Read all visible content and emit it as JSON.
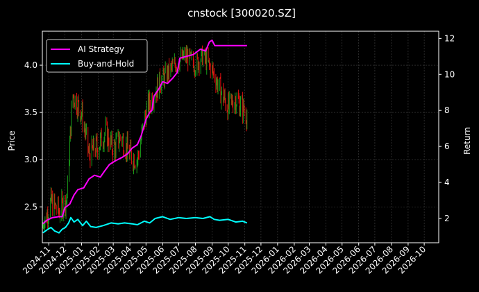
{
  "chart_data": {
    "type": "line",
    "title": "cnstock [300020.SZ]",
    "ylabel_left": "Price",
    "ylabel_right": "Return",
    "xlabel": "",
    "grid": true,
    "legend_placement": "top-left",
    "ylim_left": [
      2.12,
      4.36
    ],
    "ylim_right": [
      0.65,
      12.4
    ],
    "xlim": [
      "2024-10-20",
      "2026-10-28"
    ],
    "yticks_left": [
      "2.5",
      "3.0",
      "3.5",
      "4.0"
    ],
    "yticks_right": [
      "2",
      "4",
      "6",
      "8",
      "10",
      "12"
    ],
    "xticks": [
      "2024-11",
      "2024-12",
      "2025-01",
      "2025-02",
      "2025-03",
      "2025-04",
      "2025-05",
      "2025-06",
      "2025-07",
      "2025-08",
      "2025-09",
      "2025-10",
      "2025-11",
      "2025-12",
      "2026-01",
      "2026-02",
      "2026-03",
      "2026-04",
      "2026-05",
      "2026-06",
      "2026-07",
      "2026-08",
      "2026-09",
      "2026-10"
    ],
    "xtick_dates": [
      "2024-11-01",
      "2024-12-01",
      "2025-01-01",
      "2025-02-01",
      "2025-03-01",
      "2025-04-01",
      "2025-05-01",
      "2025-06-01",
      "2025-07-01",
      "2025-08-01",
      "2025-09-01",
      "2025-10-01",
      "2025-11-01",
      "2025-12-01",
      "2026-01-01",
      "2026-02-01",
      "2026-03-01",
      "2026-04-01",
      "2026-05-01",
      "2026-06-01",
      "2026-07-01",
      "2026-08-01",
      "2026-09-01",
      "2026-10-01"
    ],
    "colors": {
      "background": "#000000",
      "grid": "#444444",
      "up": "#1a9e1a",
      "down": "#e01010",
      "ai": "#ff00ff",
      "buyhold": "#00ffff",
      "legend_border": "#cccccc"
    },
    "candles": {
      "axis": "left",
      "start": "2024-10-21",
      "end": "2025-11-05",
      "approx_close": [
        [
          "2024-10-21",
          2.28
        ],
        [
          "2024-11-05",
          2.55
        ],
        [
          "2024-11-20",
          2.45
        ],
        [
          "2024-12-05",
          2.6
        ],
        [
          "2024-12-15",
          3.7
        ],
        [
          "2025-01-01",
          3.5
        ],
        [
          "2025-01-15",
          3.05
        ],
        [
          "2025-02-01",
          3.15
        ],
        [
          "2025-02-15",
          3.3
        ],
        [
          "2025-03-01",
          3.1
        ],
        [
          "2025-03-15",
          3.25
        ],
        [
          "2025-04-01",
          3.05
        ],
        [
          "2025-04-15",
          3.0
        ],
        [
          "2025-05-01",
          3.5
        ],
        [
          "2025-05-15",
          3.7
        ],
        [
          "2025-06-01",
          3.85
        ],
        [
          "2025-06-15",
          3.95
        ],
        [
          "2025-07-01",
          4.05
        ],
        [
          "2025-07-15",
          4.1
        ],
        [
          "2025-08-01",
          4.0
        ],
        [
          "2025-08-15",
          4.1
        ],
        [
          "2025-09-01",
          3.95
        ],
        [
          "2025-09-15",
          3.75
        ],
        [
          "2025-10-01",
          3.55
        ],
        [
          "2025-10-15",
          3.65
        ],
        [
          "2025-11-05",
          3.48
        ]
      ]
    },
    "series": [
      {
        "name": "AI Strategy",
        "axis": "right",
        "color": "#ff00ff",
        "points": [
          [
            "2024-10-21",
            1.7
          ],
          [
            "2024-10-28",
            1.9
          ],
          [
            "2024-11-08",
            2.05
          ],
          [
            "2024-11-20",
            2.1
          ],
          [
            "2024-11-26",
            2.1
          ],
          [
            "2024-12-01",
            2.6
          ],
          [
            "2024-12-10",
            2.8
          ],
          [
            "2024-12-18",
            3.3
          ],
          [
            "2024-12-25",
            3.6
          ],
          [
            "2025-01-05",
            3.7
          ],
          [
            "2025-01-15",
            4.2
          ],
          [
            "2025-01-25",
            4.4
          ],
          [
            "2025-02-05",
            4.3
          ],
          [
            "2025-02-12",
            4.6
          ],
          [
            "2025-02-22",
            5.0
          ],
          [
            "2025-03-05",
            5.2
          ],
          [
            "2025-03-18",
            5.4
          ],
          [
            "2025-03-28",
            5.6
          ],
          [
            "2025-04-05",
            5.9
          ],
          [
            "2025-04-15",
            6.1
          ],
          [
            "2025-04-22",
            6.6
          ],
          [
            "2025-05-01",
            7.5
          ],
          [
            "2025-05-08",
            7.9
          ],
          [
            "2025-05-12",
            8.0
          ],
          [
            "2025-05-16",
            8.8
          ],
          [
            "2025-05-25",
            9.2
          ],
          [
            "2025-06-01",
            9.6
          ],
          [
            "2025-06-10",
            9.5
          ],
          [
            "2025-06-20",
            9.8
          ],
          [
            "2025-06-28",
            10.1
          ],
          [
            "2025-07-03",
            10.9
          ],
          [
            "2025-07-15",
            11.0
          ],
          [
            "2025-07-28",
            11.1
          ],
          [
            "2025-08-10",
            11.4
          ],
          [
            "2025-08-20",
            11.3
          ],
          [
            "2025-08-27",
            11.8
          ],
          [
            "2025-09-01",
            11.9
          ],
          [
            "2025-09-06",
            11.6
          ],
          [
            "2025-09-15",
            11.6
          ],
          [
            "2025-10-01",
            11.6
          ],
          [
            "2025-10-20",
            11.6
          ],
          [
            "2025-11-05",
            11.6
          ]
        ]
      },
      {
        "name": "Buy-and-Hold",
        "axis": "right",
        "color": "#00ffff",
        "points": [
          [
            "2024-10-21",
            1.2
          ],
          [
            "2024-10-28",
            1.35
          ],
          [
            "2024-11-05",
            1.5
          ],
          [
            "2024-11-12",
            1.3
          ],
          [
            "2024-11-20",
            1.2
          ],
          [
            "2024-11-26",
            1.4
          ],
          [
            "2024-12-02",
            1.5
          ],
          [
            "2024-12-08",
            1.75
          ],
          [
            "2024-12-12",
            2.05
          ],
          [
            "2024-12-18",
            1.8
          ],
          [
            "2024-12-25",
            1.95
          ],
          [
            "2025-01-03",
            1.6
          ],
          [
            "2025-01-10",
            1.85
          ],
          [
            "2025-01-18",
            1.55
          ],
          [
            "2025-01-28",
            1.5
          ],
          [
            "2025-02-10",
            1.6
          ],
          [
            "2025-02-25",
            1.75
          ],
          [
            "2025-03-10",
            1.7
          ],
          [
            "2025-03-22",
            1.75
          ],
          [
            "2025-04-05",
            1.7
          ],
          [
            "2025-04-15",
            1.65
          ],
          [
            "2025-04-28",
            1.85
          ],
          [
            "2025-05-08",
            1.75
          ],
          [
            "2025-05-18",
            2.0
          ],
          [
            "2025-06-01",
            2.1
          ],
          [
            "2025-06-15",
            1.95
          ],
          [
            "2025-07-01",
            2.05
          ],
          [
            "2025-07-15",
            2.0
          ],
          [
            "2025-08-01",
            2.05
          ],
          [
            "2025-08-15",
            2.0
          ],
          [
            "2025-08-28",
            2.1
          ],
          [
            "2025-09-05",
            1.95
          ],
          [
            "2025-09-15",
            1.9
          ],
          [
            "2025-10-01",
            1.95
          ],
          [
            "2025-10-15",
            1.8
          ],
          [
            "2025-10-28",
            1.85
          ],
          [
            "2025-11-05",
            1.75
          ]
        ]
      }
    ]
  }
}
